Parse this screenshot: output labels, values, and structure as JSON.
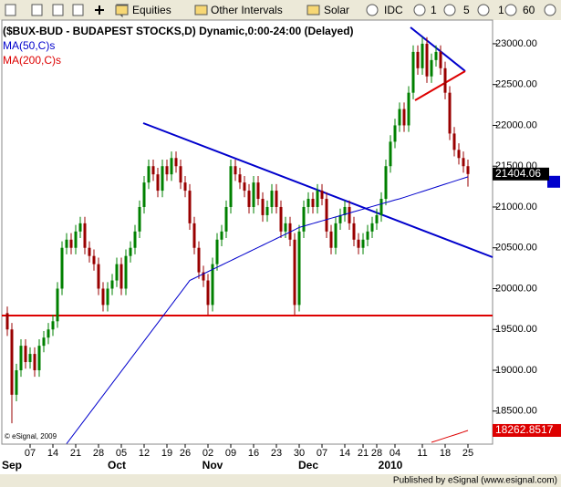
{
  "toolbar": {
    "menus": [
      "Equities",
      "Other Intervals",
      "Solar"
    ],
    "intervals": [
      "IDC",
      "1",
      "5",
      "1",
      "60"
    ]
  },
  "chart_data": {
    "type": "candlestick",
    "title": "($BUX-BUD - BUDAPEST STOCKS,D) Dynamic,0:00-24:00 (Delayed)",
    "copyright": "© eSignal, 2009",
    "publisher": "Published by eSignal (www.esignal.com)",
    "up_color": "#008000",
    "down_color": "#990000",
    "categories": [
      null,
      null,
      null,
      null,
      null,
      "07",
      null,
      null,
      null,
      null,
      "14",
      null,
      null,
      null,
      null,
      "21",
      null,
      null,
      null,
      null,
      "28",
      null,
      null,
      null,
      null,
      "05",
      null,
      null,
      null,
      null,
      "12",
      null,
      null,
      null,
      null,
      "19",
      null,
      null,
      null,
      "26",
      null,
      null,
      null,
      null,
      "02",
      null,
      null,
      null,
      null,
      "09",
      null,
      null,
      null,
      null,
      "16",
      null,
      null,
      null,
      null,
      "23",
      null,
      null,
      null,
      null,
      "30",
      null,
      null,
      null,
      null,
      "07",
      null,
      null,
      null,
      null,
      "14",
      null,
      null,
      null,
      "21",
      null,
      null,
      "28",
      null,
      null,
      null,
      "04",
      null,
      null,
      null,
      null,
      null,
      "11",
      null,
      null,
      null,
      null,
      "18",
      null,
      null,
      null,
      null,
      "25"
    ],
    "months": [
      null,
      "Sep",
      null,
      null,
      null,
      null,
      null,
      null,
      null,
      null,
      null,
      null,
      null,
      null,
      null,
      null,
      null,
      null,
      null,
      null,
      null,
      null,
      null,
      null,
      "Oct",
      null,
      null,
      null,
      null,
      null,
      null,
      null,
      null,
      null,
      null,
      null,
      null,
      null,
      null,
      null,
      null,
      null,
      null,
      null,
      null,
      "Nov",
      null,
      null,
      null,
      null,
      null,
      null,
      null,
      null,
      null,
      null,
      null,
      null,
      null,
      null,
      null,
      null,
      null,
      null,
      null,
      null,
      "Dec",
      null,
      null,
      null,
      null,
      null,
      null,
      null,
      null,
      null,
      null,
      null,
      null,
      null,
      null,
      null,
      null,
      null,
      "2010",
      null,
      null,
      null,
      null,
      null,
      null,
      null,
      null,
      null,
      null,
      null,
      null,
      null,
      null,
      null,
      null,
      null
    ],
    "ohlc": [
      [
        19700,
        19780,
        19420,
        19500
      ],
      [
        19500,
        19580,
        18350,
        18700
      ],
      [
        18700,
        19080,
        18620,
        19000
      ],
      [
        19000,
        19380,
        18920,
        19300
      ],
      [
        19300,
        19380,
        19020,
        19100
      ],
      [
        19100,
        19280,
        19020,
        19200
      ],
      [
        19200,
        19280,
        18920,
        19000
      ],
      [
        19000,
        19380,
        18920,
        19300
      ],
      [
        19300,
        19480,
        19220,
        19400
      ],
      [
        19400,
        19580,
        19320,
        19500
      ],
      [
        19500,
        19680,
        19420,
        19600
      ],
      [
        19600,
        20080,
        19520,
        20000
      ],
      [
        20000,
        20580,
        19920,
        20500
      ],
      [
        20500,
        20680,
        20420,
        20600
      ],
      [
        20600,
        20680,
        20420,
        20500
      ],
      [
        20500,
        20780,
        20420,
        20700
      ],
      [
        20700,
        20880,
        20620,
        20800
      ],
      [
        20800,
        20880,
        20420,
        20500
      ],
      [
        20500,
        20580,
        20320,
        20400
      ],
      [
        20400,
        20480,
        20220,
        20300
      ],
      [
        20300,
        20380,
        19920,
        20000
      ],
      [
        20000,
        20080,
        19720,
        19800
      ],
      [
        19800,
        20080,
        19720,
        20000
      ],
      [
        20000,
        20180,
        19920,
        20100
      ],
      [
        20100,
        20380,
        20020,
        20300
      ],
      [
        20300,
        20380,
        19920,
        20000
      ],
      [
        20000,
        20480,
        19920,
        20400
      ],
      [
        20400,
        20580,
        20320,
        20500
      ],
      [
        20500,
        20780,
        20420,
        20700
      ],
      [
        20700,
        21080,
        20620,
        21000
      ],
      [
        21000,
        21380,
        20920,
        21300
      ],
      [
        21300,
        21580,
        21220,
        21500
      ],
      [
        21500,
        21580,
        21320,
        21400
      ],
      [
        21400,
        21480,
        21120,
        21200
      ],
      [
        21200,
        21580,
        21120,
        21500
      ],
      [
        21500,
        21580,
        21320,
        21400
      ],
      [
        21400,
        21680,
        21320,
        21600
      ],
      [
        21600,
        21680,
        21420,
        21500
      ],
      [
        21500,
        21580,
        21220,
        21300
      ],
      [
        21300,
        21380,
        21120,
        21200
      ],
      [
        21200,
        21280,
        20720,
        20800
      ],
      [
        20800,
        20880,
        20420,
        20500
      ],
      [
        20500,
        20580,
        20120,
        20200
      ],
      [
        20200,
        20280,
        20020,
        20100
      ],
      [
        20100,
        20180,
        19680,
        19800
      ],
      [
        19800,
        20380,
        19720,
        20300
      ],
      [
        20300,
        20680,
        20220,
        20600
      ],
      [
        20600,
        20780,
        20520,
        20700
      ],
      [
        20700,
        21080,
        20620,
        21000
      ],
      [
        21000,
        21580,
        20920,
        21500
      ],
      [
        21500,
        21580,
        21320,
        21400
      ],
      [
        21400,
        21480,
        21220,
        21300
      ],
      [
        21300,
        21380,
        21120,
        21200
      ],
      [
        21200,
        21280,
        20920,
        21000
      ],
      [
        21000,
        21380,
        20920,
        21300
      ],
      [
        21300,
        21380,
        21020,
        21100
      ],
      [
        21100,
        21180,
        20820,
        20900
      ],
      [
        20900,
        21080,
        20820,
        21000
      ],
      [
        21000,
        21280,
        20920,
        21200
      ],
      [
        21200,
        21280,
        20920,
        21000
      ],
      [
        21000,
        21080,
        20620,
        20700
      ],
      [
        20700,
        20880,
        20620,
        20800
      ],
      [
        20800,
        20880,
        20520,
        20600
      ],
      [
        20600,
        20680,
        19680,
        19800
      ],
      [
        19800,
        20780,
        19720,
        20700
      ],
      [
        20700,
        21080,
        20620,
        21000
      ],
      [
        21000,
        21180,
        20920,
        21100
      ],
      [
        21100,
        21180,
        20920,
        21000
      ],
      [
        21000,
        21280,
        20920,
        21200
      ],
      [
        21200,
        21280,
        21020,
        21100
      ],
      [
        21100,
        21180,
        20620,
        20700
      ],
      [
        20700,
        20780,
        20420,
        20500
      ],
      [
        20500,
        20880,
        20420,
        20800
      ],
      [
        20800,
        20980,
        20720,
        20900
      ],
      [
        20900,
        21080,
        20820,
        21000
      ],
      [
        21000,
        21080,
        20720,
        20800
      ],
      [
        20800,
        20880,
        20520,
        20600
      ],
      [
        20600,
        20680,
        20420,
        20500
      ],
      [
        20500,
        20680,
        20420,
        20600
      ],
      [
        20600,
        20780,
        20520,
        20700
      ],
      [
        20700,
        20880,
        20620,
        20800
      ],
      [
        20800,
        20980,
        20720,
        20900
      ],
      [
        20900,
        21180,
        20820,
        21100
      ],
      [
        21100,
        21580,
        21020,
        21500
      ],
      [
        21500,
        21880,
        21420,
        21800
      ],
      [
        21800,
        22080,
        21720,
        22000
      ],
      [
        22000,
        22280,
        21920,
        22200
      ],
      [
        22200,
        22280,
        21920,
        22000
      ],
      [
        22000,
        22480,
        21920,
        22400
      ],
      [
        22400,
        22980,
        22320,
        22900
      ],
      [
        22900,
        22980,
        22620,
        22700
      ],
      [
        22700,
        23080,
        22620,
        23000
      ],
      [
        23000,
        23080,
        22520,
        22600
      ],
      [
        22600,
        22880,
        22520,
        22800
      ],
      [
        22800,
        22980,
        22720,
        22900
      ],
      [
        22900,
        22980,
        22620,
        22700
      ],
      [
        22700,
        22780,
        22320,
        22400
      ],
      [
        22400,
        22480,
        21820,
        21900
      ],
      [
        21900,
        21980,
        21620,
        21700
      ],
      [
        21700,
        21780,
        21520,
        21600
      ],
      [
        21600,
        21680,
        21420,
        21500
      ],
      [
        21500,
        21580,
        21250,
        21404.06
      ]
    ],
    "series": [
      {
        "name": "MA(50,C)s",
        "color": "#0000cc",
        "values": [
          null,
          null,
          null,
          null,
          null,
          null,
          null,
          null,
          null,
          null,
          null,
          null,
          null,
          18100,
          18174,
          18248,
          18322,
          18396,
          18470,
          18544,
          18618,
          18692,
          18766,
          18840,
          18914,
          18988,
          19062,
          19136,
          19210,
          19284,
          19358,
          19432,
          19506,
          19580,
          19654,
          19728,
          19802,
          19876,
          19950,
          20024,
          20100,
          20127,
          20154,
          20181,
          20208,
          20235,
          20262,
          20289,
          20316,
          20343,
          20370,
          20397,
          20424,
          20451,
          20478,
          20505,
          20532,
          20559,
          20586,
          20613,
          20640,
          20667,
          20694,
          20721,
          20750,
          20766,
          20782,
          20798,
          20814,
          20830,
          20846,
          20862,
          20878,
          20894,
          20910,
          20926,
          20942,
          20958,
          20974,
          20990,
          21006,
          21022,
          21038,
          21054,
          21070,
          21086,
          21100,
          21118,
          21136,
          21154,
          21172,
          21190,
          21208,
          21226,
          21244,
          21262,
          21280,
          21298,
          21316,
          21334,
          21352,
          21370
        ]
      },
      {
        "name": "MA(200,C)s",
        "color": "#dd0000",
        "values": [
          null,
          null,
          null,
          null,
          null,
          null,
          null,
          null,
          null,
          null,
          null,
          null,
          null,
          null,
          null,
          null,
          null,
          null,
          null,
          null,
          null,
          null,
          null,
          null,
          null,
          null,
          null,
          null,
          null,
          null,
          null,
          null,
          null,
          null,
          null,
          null,
          null,
          null,
          null,
          null,
          null,
          null,
          null,
          null,
          null,
          null,
          null,
          null,
          null,
          null,
          null,
          null,
          null,
          null,
          null,
          null,
          null,
          null,
          null,
          null,
          null,
          null,
          null,
          null,
          null,
          null,
          null,
          null,
          null,
          null,
          null,
          null,
          null,
          null,
          null,
          null,
          null,
          null,
          null,
          null,
          null,
          null,
          null,
          null,
          null,
          null,
          null,
          null,
          null,
          null,
          null,
          null,
          null,
          18117,
          18135,
          18153,
          18171,
          18189,
          18207,
          18225,
          18244,
          18262.8517
        ]
      }
    ],
    "ylim": [
      18095,
      23290
    ],
    "yticks": [
      {
        "value": 18500,
        "label": "18500.00"
      },
      {
        "value": 19000,
        "label": "19000.00"
      },
      {
        "value": 19500,
        "label": "19500.00"
      },
      {
        "value": 20000,
        "label": "20000.00"
      },
      {
        "value": 20500,
        "label": "20500.00"
      },
      {
        "value": 21000,
        "label": "21000.00"
      },
      {
        "value": 21500,
        "label": "21500.00"
      },
      {
        "value": 22000,
        "label": "22000.00"
      },
      {
        "value": 22500,
        "label": "22500.00"
      },
      {
        "value": 23000,
        "label": "23000.00"
      }
    ]
  }
}
